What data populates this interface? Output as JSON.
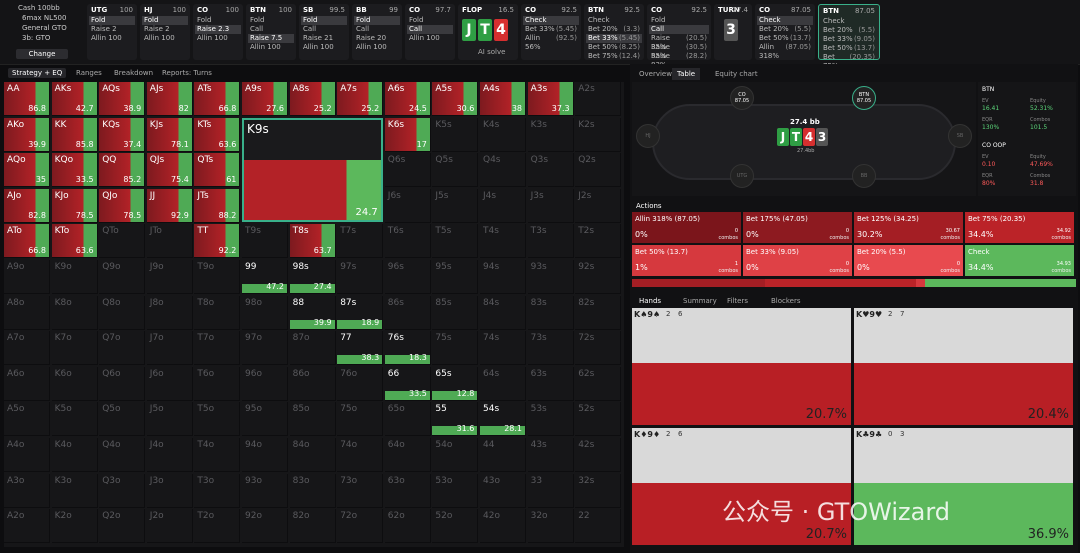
{
  "header": {
    "menu": [
      "Cash 100bb",
      "6max NL500",
      "General GTO",
      "3b: GTO",
      "Change"
    ],
    "streets": [
      {
        "pos": "UTG",
        "stack": 100,
        "options": [
          {
            "label": "Fold",
            "selected": true
          },
          {
            "label": "Raise 2"
          },
          {
            "label": "Allin 100"
          }
        ]
      },
      {
        "pos": "HJ",
        "stack": 100,
        "options": [
          {
            "label": "Fold",
            "selected": true
          },
          {
            "label": "Raise 2"
          },
          {
            "label": "Allin 100"
          }
        ]
      },
      {
        "pos": "CO",
        "stack": 100,
        "options": [
          {
            "label": "Fold"
          },
          {
            "label": "Raise 2.3",
            "selected": true
          },
          {
            "label": "Allin 100"
          }
        ]
      },
      {
        "pos": "BTN",
        "stack": 100,
        "options": [
          {
            "label": "Fold"
          },
          {
            "label": "Call"
          },
          {
            "label": "Raise 7.5",
            "selected": true
          },
          {
            "label": "Allin 100"
          }
        ]
      },
      {
        "pos": "SB",
        "stack": 99.5,
        "options": [
          {
            "label": "Fold",
            "selected": true
          },
          {
            "label": "Call"
          },
          {
            "label": "Raise 21"
          },
          {
            "label": "Allin 100"
          }
        ]
      },
      {
        "pos": "BB",
        "stack": 99,
        "options": [
          {
            "label": "Fold",
            "selected": true
          },
          {
            "label": "Call"
          },
          {
            "label": "Raise 20"
          },
          {
            "label": "Allin 100"
          }
        ]
      },
      {
        "pos": "CO",
        "stack": 97.7,
        "options": [
          {
            "label": "Fold"
          },
          {
            "label": "Call",
            "selected": true
          },
          {
            "label": "Allin 100"
          }
        ]
      },
      {
        "pos": "FLOP",
        "stack": 16.5,
        "cards": [
          {
            "rank": "J",
            "color": "#2f9e44"
          },
          {
            "rank": "T",
            "color": "#2f9e44"
          },
          {
            "rank": "4",
            "color": "#d62f2f"
          }
        ],
        "note": "AI solve"
      },
      {
        "pos": "CO",
        "stack": 92.5,
        "options": [
          {
            "label": "Check",
            "selected": true
          },
          {
            "label": "Bet 33%",
            "size": "(5.45)"
          },
          {
            "label": "Allin 56%",
            "size": "(92.5)"
          }
        ]
      },
      {
        "pos": "BTN",
        "stack": 92.5,
        "options": [
          {
            "label": "Check"
          },
          {
            "label": "Bet 20%",
            "size": "(3.3)"
          },
          {
            "label": "Bet 33%",
            "size": "(5.45)",
            "selected": true
          },
          {
            "label": "Bet 50%",
            "size": "(8.25)"
          },
          {
            "label": "Bet 75%",
            "size": "(12.4)"
          }
        ]
      },
      {
        "pos": "CO",
        "stack": 92.5,
        "options": [
          {
            "label": "Fold"
          },
          {
            "label": "Call",
            "selected": true
          },
          {
            "label": "Raise 35%",
            "size": "(20.5)"
          },
          {
            "label": "Raise 55%",
            "size": "(30.5)"
          },
          {
            "label": "Raise 83%",
            "size": "(28.2)"
          }
        ]
      },
      {
        "pos": "TURN",
        "stack": 27.4,
        "cards": [
          {
            "rank": "3",
            "color": "#555555"
          }
        ]
      },
      {
        "pos": "CO",
        "stack": 87.05,
        "options": [
          {
            "label": "Check",
            "selected": true
          },
          {
            "label": "Bet 20%",
            "size": "(5.5)"
          },
          {
            "label": "Bet 50%",
            "size": "(13.7)"
          },
          {
            "label": "Allin 318%",
            "size": "(87.05)"
          }
        ]
      },
      {
        "pos": "BTN",
        "stack": 87.05,
        "active": true,
        "options": [
          {
            "label": "Check"
          },
          {
            "label": "Bet 20%",
            "size": "(5.5)"
          },
          {
            "label": "Bet 33%",
            "size": "(9.05)"
          },
          {
            "label": "Bet 50%",
            "size": "(13.7)"
          },
          {
            "label": "Bet 75%",
            "size": "(20.35)"
          }
        ]
      }
    ]
  },
  "toolbar": [
    "Strategy + EQ",
    "Ranges",
    "Breakdown",
    "Reports: Turns"
  ],
  "matrix": {
    "hands": [
      [
        "AA",
        "AKs",
        "AQs",
        "AJs",
        "ATs",
        "A9s",
        "A8s",
        "A7s",
        "A6s",
        "A5s",
        "A4s",
        "A3s",
        "A2s"
      ],
      [
        "AKo",
        "KK",
        "KQs",
        "KJs",
        "KTs",
        "K9s",
        null,
        null,
        "K6s",
        "K5s",
        "K4s",
        "K3s",
        "K2s"
      ],
      [
        "AQo",
        "KQo",
        "QQ",
        "QJs",
        "QTs",
        null,
        null,
        null,
        "Q6s",
        "Q5s",
        "Q4s",
        "Q3s",
        "Q2s"
      ],
      [
        "AJo",
        "KJo",
        "QJo",
        "JJ",
        "JTs",
        null,
        null,
        null,
        "J6s",
        "J5s",
        "J4s",
        "J3s",
        "J2s"
      ],
      [
        "ATo",
        "KTo",
        "QTo",
        "JTo",
        "TT",
        "T9s",
        "T8s",
        "T7s",
        "T6s",
        "T5s",
        "T4s",
        "T3s",
        "T2s"
      ],
      [
        "A9o",
        "K9o",
        "Q9o",
        "J9o",
        "T9o",
        "99",
        "98s",
        "97s",
        "96s",
        "95s",
        "94s",
        "93s",
        "92s"
      ],
      [
        "A8o",
        "K8o",
        "Q8o",
        "J8o",
        "T8o",
        "98o",
        "88",
        "87s",
        "86s",
        "85s",
        "84s",
        "83s",
        "82s"
      ],
      [
        "A7o",
        "K7o",
        "Q7o",
        "J7o",
        "T7o",
        "97o",
        "87o",
        "77",
        "76s",
        "75s",
        "74s",
        "73s",
        "72s"
      ],
      [
        "A6o",
        "K6o",
        "Q6o",
        "J6o",
        "T6o",
        "96o",
        "86o",
        "76o",
        "66",
        "65s",
        "64s",
        "63s",
        "62s"
      ],
      [
        "A5o",
        "K5o",
        "Q5o",
        "J5o",
        "T5o",
        "95o",
        "85o",
        "75o",
        "65o",
        "55",
        "54s",
        "53s",
        "52s"
      ],
      [
        "A4o",
        "K4o",
        "Q4o",
        "J4o",
        "T4o",
        "94o",
        "84o",
        "74o",
        "64o",
        "54o",
        "44",
        "43s",
        "42s"
      ],
      [
        "A3o",
        "K3o",
        "Q3o",
        "J3o",
        "T3o",
        "93o",
        "83o",
        "73o",
        "63o",
        "53o",
        "43o",
        "33",
        "32s"
      ],
      [
        "A2o",
        "K2o",
        "Q2o",
        "J2o",
        "T2o",
        "92o",
        "82o",
        "72o",
        "62o",
        "52o",
        "42o",
        "32o",
        "22"
      ]
    ],
    "values": [
      [
        86.8,
        42.7,
        38.9,
        82,
        66.8,
        27.6,
        25.2,
        25.2,
        24.5,
        30.6,
        38,
        37.3,
        null
      ],
      [
        39.9,
        85.8,
        37.4,
        78.1,
        63.6,
        24.7,
        null,
        null,
        17,
        null,
        null,
        null,
        null
      ],
      [
        35,
        33.5,
        85.2,
        75.4,
        61,
        null,
        null,
        null,
        null,
        null,
        null,
        null,
        null
      ],
      [
        82.8,
        78.5,
        78.5,
        92.9,
        88.2,
        null,
        null,
        null,
        null,
        null,
        null,
        null,
        null
      ],
      [
        66.8,
        63.6,
        null,
        null,
        92.2,
        null,
        63.7,
        null,
        null,
        null,
        null,
        null,
        null
      ],
      [
        null,
        null,
        null,
        null,
        null,
        47.2,
        27.4,
        null,
        null,
        null,
        null,
        null,
        null
      ],
      [
        null,
        null,
        null,
        null,
        null,
        null,
        39.9,
        18.9,
        null,
        null,
        null,
        null,
        null
      ],
      [
        null,
        null,
        null,
        null,
        null,
        null,
        null,
        38.3,
        18.3,
        null,
        null,
        null,
        null
      ],
      [
        null,
        null,
        null,
        null,
        null,
        null,
        null,
        null,
        33.5,
        12.8,
        null,
        null,
        null
      ],
      [
        null,
        null,
        null,
        null,
        null,
        null,
        null,
        null,
        null,
        31.6,
        28.1,
        null,
        null
      ],
      [
        null,
        null,
        null,
        null,
        null,
        null,
        null,
        null,
        null,
        null,
        null,
        null,
        null
      ],
      [
        null,
        null,
        null,
        null,
        null,
        null,
        null,
        null,
        null,
        null,
        null,
        null,
        null
      ],
      [
        null,
        null,
        null,
        null,
        null,
        null,
        null,
        null,
        null,
        null,
        null,
        null,
        null
      ]
    ]
  },
  "panel": {
    "tabs": [
      "Overview",
      "Table",
      "Equity chart"
    ],
    "seats": [
      {
        "pos": "CO",
        "stack": 87.05
      },
      {
        "pos": "BTN",
        "stack": 87.05,
        "active": true
      },
      {
        "pos": "SB"
      },
      {
        "pos": "BB"
      },
      {
        "pos": "UTG"
      },
      {
        "pos": "HJ"
      }
    ],
    "pot": "27.4 bb",
    "pot_small": "27.4bb",
    "board": [
      {
        "rank": "J",
        "color": "#2f9e44"
      },
      {
        "rank": "T",
        "color": "#2f9e44"
      },
      {
        "rank": "4",
        "color": "#d62f2f"
      },
      {
        "rank": "3",
        "color": "#555555"
      }
    ],
    "info": [
      {
        "title": "BTN",
        "stats": [
          [
            "EV",
            "16.41"
          ],
          [
            "Equity",
            "52.31%"
          ],
          [
            "EQR",
            "130%"
          ],
          [
            "Combos",
            "101.5"
          ]
        ]
      },
      {
        "title": "CO OOP",
        "stats": [
          [
            "EV",
            "0.10"
          ],
          [
            "Equity",
            "47.69%"
          ],
          [
            "EQR",
            "80%"
          ],
          [
            "Combos",
            "31.8"
          ]
        ]
      }
    ]
  },
  "actions": {
    "title": "Actions",
    "combos_label": "combos",
    "items": [
      {
        "label": "Allin 318% (87.05)",
        "pct": "0%",
        "combos": "0",
        "color": "#7b151b"
      },
      {
        "label": "Bet 175% (47.05)",
        "pct": "0%",
        "combos": "0",
        "color": "#8d1a20"
      },
      {
        "label": "Bet 125% (34.25)",
        "pct": "30.2%",
        "combos": "30.67",
        "color": "#a41e24"
      },
      {
        "label": "Bet 75% (20.35)",
        "pct": "34.4%",
        "combos": "34.92",
        "color": "#bb2328"
      },
      {
        "label": "Bet 50% (13.7)",
        "pct": "1%",
        "combos": "1",
        "color": "#d6393e"
      },
      {
        "label": "Bet 33% (9.05)",
        "pct": "0%",
        "combos": "0",
        "color": "#df4146"
      },
      {
        "label": "Bet 20% (5.5)",
        "pct": "0%",
        "combos": "0",
        "color": "#e84a4f"
      },
      {
        "label": "Check",
        "pct": "34.4%",
        "combos": "34.93",
        "color": "#5cb85c"
      }
    ]
  },
  "hands": {
    "tabs": [
      "Hands",
      "Summary",
      "Filters",
      "Blockers"
    ],
    "items": [
      {
        "combo": "K♠9♠",
        "counts": [
          2,
          6
        ],
        "value": "20.7%",
        "color": "#b81f25"
      },
      {
        "combo": "K♥9♥",
        "counts": [
          2,
          7
        ],
        "value": "20.4%",
        "color": "#b81f25"
      },
      {
        "combo": "K♦9♦",
        "counts": [
          2,
          6
        ],
        "value": "20.7%",
        "color": "#b81f25"
      },
      {
        "combo": "K♣9♣",
        "counts": [
          0,
          3
        ],
        "value": "36.9%",
        "color": "#5cb85c"
      }
    ]
  },
  "watermark": "公众号 · GTOWizard"
}
